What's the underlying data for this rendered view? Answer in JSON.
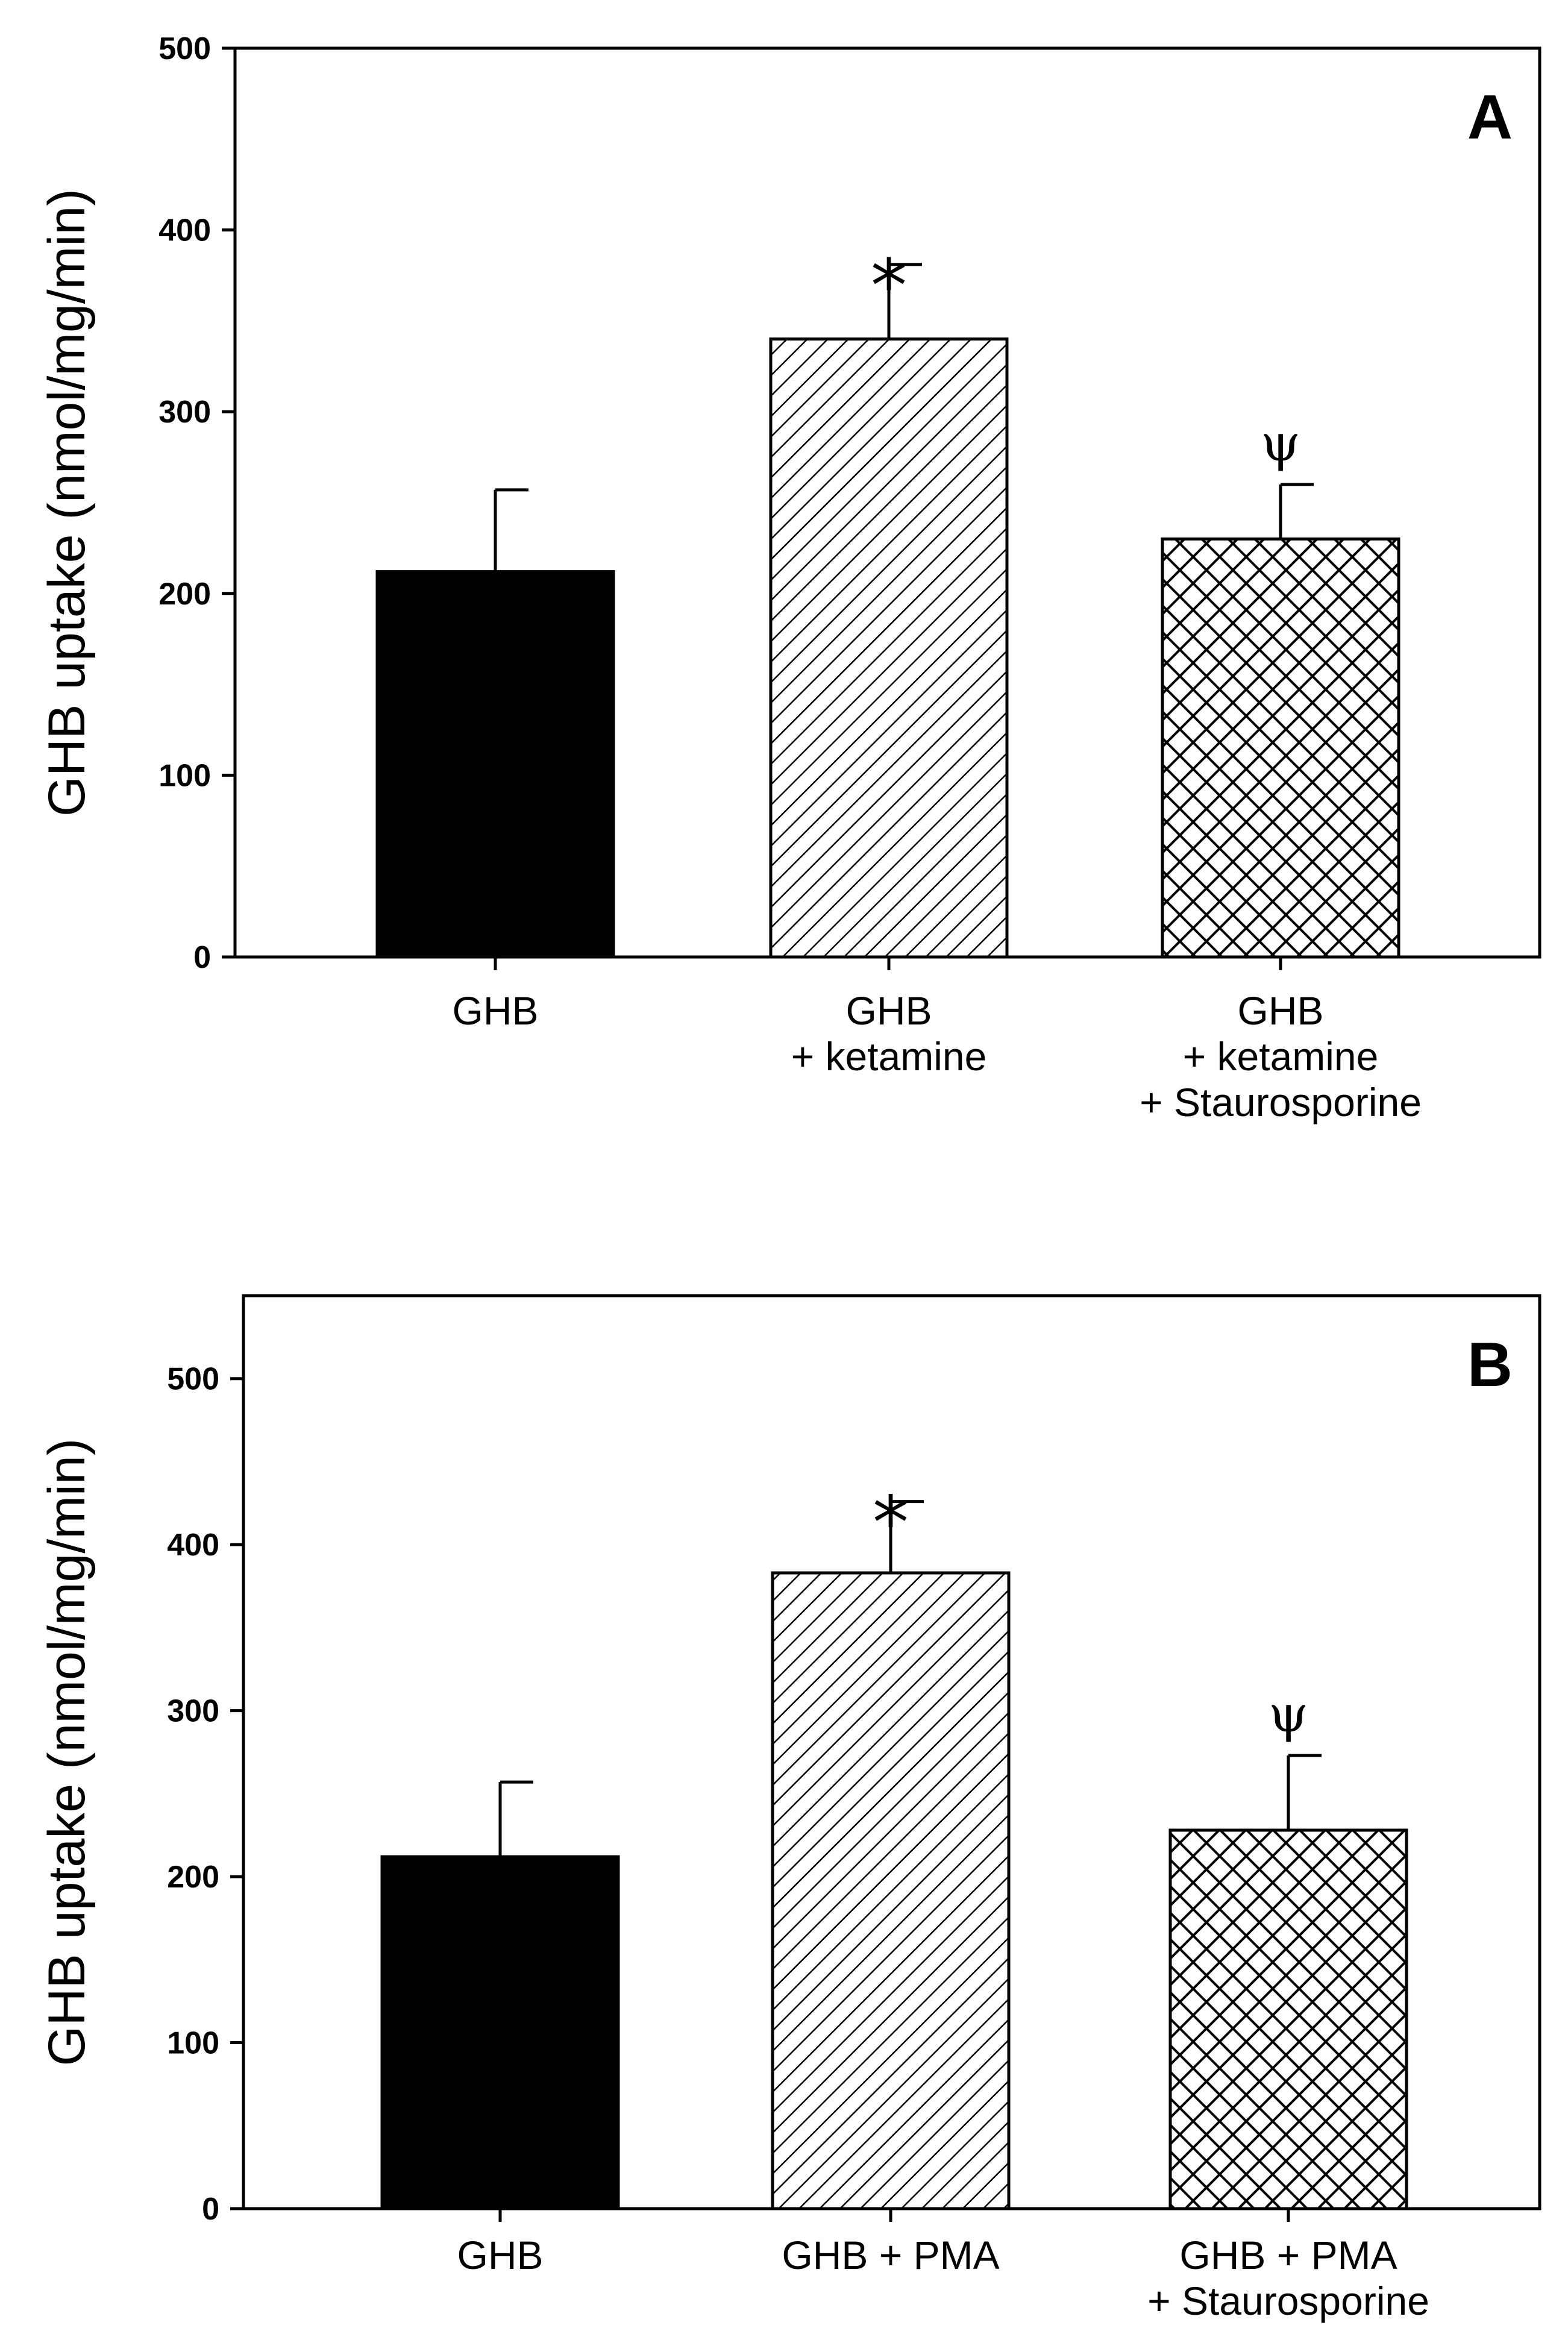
{
  "chart_data": [
    {
      "type": "bar",
      "panel_label": "A",
      "ylabel": "GHB uptake (nmol/mg/min)",
      "ylim": [
        0,
        500
      ],
      "yticks": [
        0,
        100,
        200,
        300,
        400,
        500
      ],
      "categories": [
        [
          "GHB"
        ],
        [
          "GHB",
          "+ ketamine"
        ],
        [
          "GHB",
          "+ ketamine",
          "+ Staurosporine"
        ]
      ],
      "values": [
        212,
        340,
        230
      ],
      "errors": [
        45,
        41,
        30
      ],
      "patterns": [
        "solid",
        "diagonal",
        "crosshatch"
      ],
      "annotations": [
        "",
        "*",
        "ψ"
      ],
      "grid": false
    },
    {
      "type": "bar",
      "panel_label": "B",
      "ylabel": "GHB uptake (nmol/mg/min)",
      "ylim": [
        0,
        550
      ],
      "yticks": [
        0,
        100,
        200,
        300,
        400,
        500
      ],
      "categories": [
        [
          "GHB"
        ],
        [
          "GHB + PMA"
        ],
        [
          "GHB + PMA",
          "+ Staurosporine"
        ]
      ],
      "values": [
        212,
        383,
        228
      ],
      "errors": [
        45,
        43,
        45
      ],
      "patterns": [
        "solid",
        "diagonal",
        "crosshatch"
      ],
      "annotations": [
        "",
        "*",
        "ψ"
      ],
      "grid": false
    }
  ]
}
